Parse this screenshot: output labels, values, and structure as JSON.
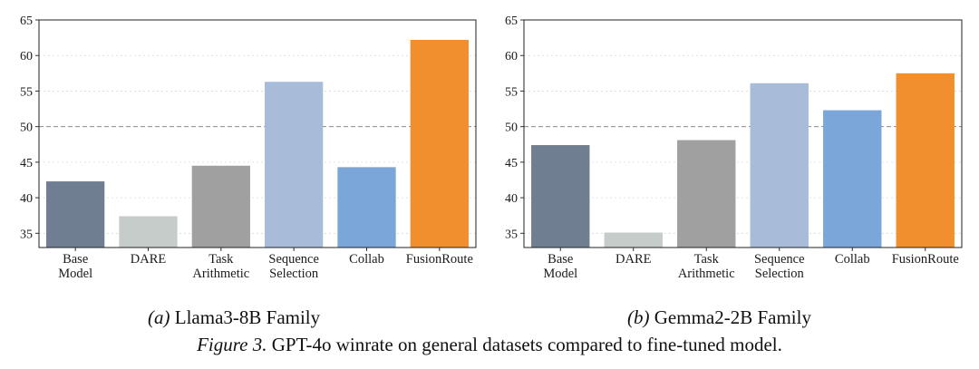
{
  "chart_data": [
    {
      "type": "bar",
      "panel_label": "(a)",
      "title": "Llama3-8B Family",
      "categories": [
        "Base\nModel",
        "DARE",
        "Task\nArithmetic",
        "Sequence\nSelection",
        "Collab",
        "FusionRoute"
      ],
      "values": [
        42.3,
        37.4,
        44.5,
        56.3,
        44.3,
        62.2
      ],
      "colors": [
        "#6f7f91",
        "#c5ccca",
        "#a0a0a0",
        "#a8bcda",
        "#7aa6d9",
        "#f18f2f"
      ],
      "ylim": [
        33,
        65
      ],
      "yticks": [
        35,
        40,
        45,
        50,
        55,
        60,
        65
      ],
      "reference_line": 50,
      "grid": true,
      "xlabel": "",
      "ylabel": ""
    },
    {
      "type": "bar",
      "panel_label": "(b)",
      "title": "Gemma2-2B Family",
      "categories": [
        "Base\nModel",
        "DARE",
        "Task\nArithmetic",
        "Sequence\nSelection",
        "Collab",
        "FusionRoute"
      ],
      "values": [
        47.4,
        35.1,
        48.1,
        56.1,
        52.3,
        57.5
      ],
      "colors": [
        "#6f7f91",
        "#c5ccca",
        "#a0a0a0",
        "#a8bcda",
        "#7aa6d9",
        "#f18f2f"
      ],
      "ylim": [
        33,
        65
      ],
      "yticks": [
        35,
        40,
        45,
        50,
        55,
        60,
        65
      ],
      "reference_line": 50,
      "grid": true,
      "xlabel": "",
      "ylabel": ""
    }
  ],
  "figure_caption": {
    "label": "Figure 3.",
    "text": " GPT-4o winrate on general datasets compared to fine-tuned model."
  }
}
